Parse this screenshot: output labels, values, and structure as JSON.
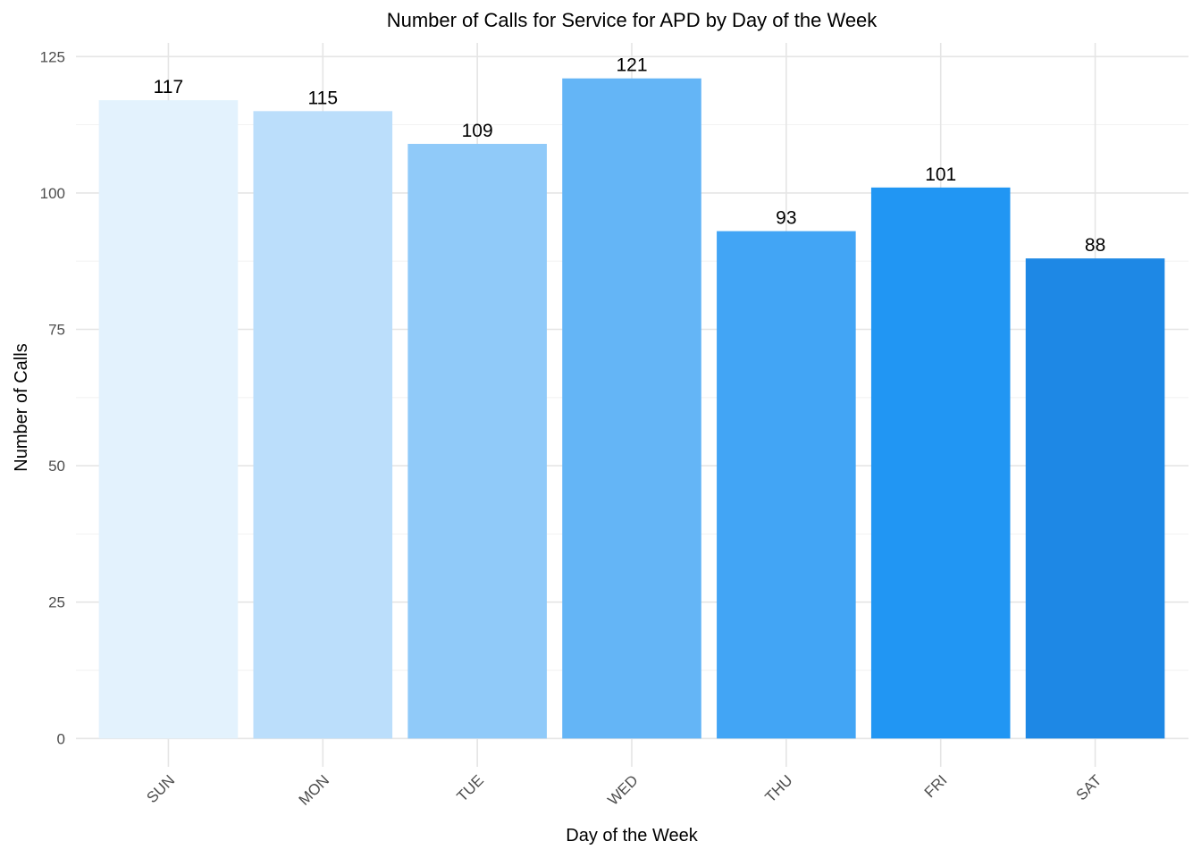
{
  "chart_data": {
    "type": "bar",
    "title": "Number of Calls for Service for APD by Day of the Week",
    "xlabel": "Day of the Week",
    "ylabel": "Number of Calls",
    "categories": [
      "SUN",
      "MON",
      "TUE",
      "WED",
      "THU",
      "FRI",
      "SAT"
    ],
    "values": [
      117,
      115,
      109,
      121,
      93,
      101,
      88
    ],
    "data_labels": [
      "117",
      "115",
      "109",
      "121",
      "93",
      "101",
      "88"
    ],
    "colors": [
      "#e3f2fd",
      "#bbdefb",
      "#90caf9",
      "#64b5f6",
      "#42a5f5",
      "#2196f3",
      "#1e88e5"
    ],
    "ylim": [
      0,
      125
    ],
    "yticks": [
      0,
      25,
      50,
      75,
      100,
      125
    ],
    "ytick_labels": [
      "0",
      "25",
      "50",
      "75",
      "100",
      "125"
    ],
    "grid": true,
    "legend": "none"
  }
}
